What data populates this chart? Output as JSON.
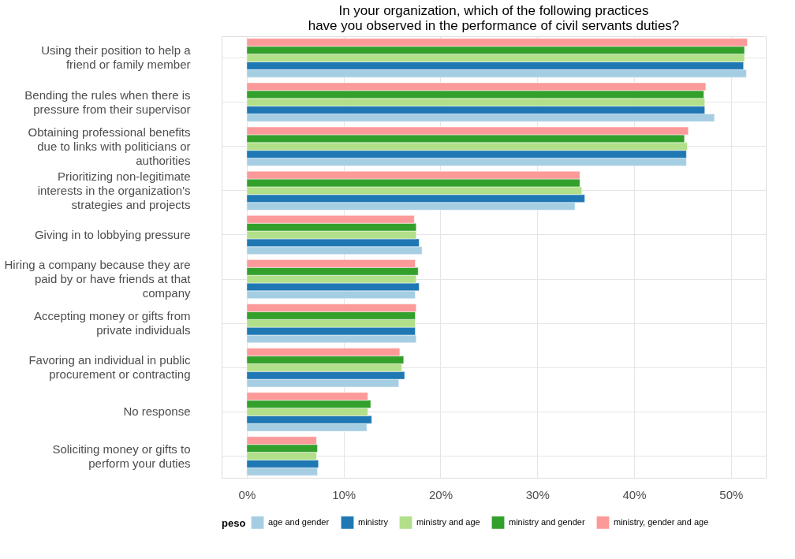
{
  "chart_data": {
    "type": "bar",
    "orientation": "horizontal",
    "title": "In your organization, which of the following practices\nhave you observed in the performance of civil servants duties?",
    "categories": [
      "Using their position to help a\nfriend or family member",
      "Bending the rules when there is\npressure from their supervisor",
      "Obtaining professional benefits\ndue to links with politicians or\nauthorities",
      "Prioritizing non-legitimate\ninterests in the organization's\nstrategies and projects",
      "Giving in to lobbying pressure",
      "Hiring a company because they are\npaid by or have friends at that\ncompany",
      "Accepting money or gifts from\nprivate individuals",
      "Favoring an individual in public\nprocurement or contracting",
      "No response",
      "Soliciting money or gifts to\nperform your duties"
    ],
    "series": [
      {
        "name": "age and gender",
        "color": "#a6cee3",
        "values": [
          51.6,
          48.3,
          45.4,
          33.9,
          18.1,
          17.4,
          17.5,
          15.7,
          12.4,
          7.3
        ]
      },
      {
        "name": "ministry",
        "color": "#1f78b4",
        "values": [
          51.3,
          47.3,
          45.4,
          34.9,
          17.8,
          17.8,
          17.4,
          16.3,
          12.9,
          7.4
        ]
      },
      {
        "name": "ministry and age",
        "color": "#b2df8a",
        "values": [
          51.4,
          47.3,
          45.5,
          34.6,
          17.5,
          17.5,
          17.4,
          16.0,
          12.5,
          7.2
        ]
      },
      {
        "name": "ministry and gender",
        "color": "#33a02c",
        "values": [
          51.4,
          47.2,
          45.2,
          34.4,
          17.5,
          17.7,
          17.4,
          16.2,
          12.8,
          7.3
        ]
      },
      {
        "name": "ministry, gender and age",
        "color": "#fb9a99",
        "values": [
          51.7,
          47.4,
          45.6,
          34.4,
          17.3,
          17.4,
          17.5,
          15.8,
          12.5,
          7.2
        ]
      }
    ],
    "legend_title": "peso",
    "legend": "bottom",
    "grid": true,
    "xlim": [
      -2.6,
      53.6
    ],
    "xticks": [
      {
        "value": 0,
        "label": "0%"
      },
      {
        "value": 10,
        "label": "10%"
      },
      {
        "value": 20,
        "label": "20%"
      },
      {
        "value": 30,
        "label": "30%"
      },
      {
        "value": 40,
        "label": "40%"
      },
      {
        "value": 50,
        "label": "50%"
      }
    ]
  }
}
